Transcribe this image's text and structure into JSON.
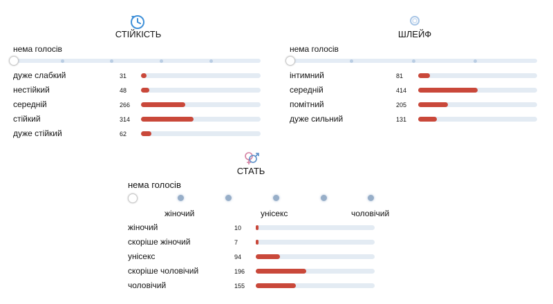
{
  "colors": {
    "bar": "#c9483a",
    "track": "#e3ebf3",
    "tick": "#b9cde3"
  },
  "longevity": {
    "icon": "clock-arrow-icon",
    "title": "СТІЙКІСТЬ",
    "no_votes": "нема голосів",
    "rows": [
      {
        "label": "дуже слабкий",
        "count": "31",
        "value": 31
      },
      {
        "label": "нестійкий",
        "count": "48",
        "value": 48
      },
      {
        "label": "середній",
        "count": "266",
        "value": 266
      },
      {
        "label": "стійкий",
        "count": "314",
        "value": 314
      },
      {
        "label": "дуже стійкий",
        "count": "62",
        "value": 62
      }
    ]
  },
  "sillage": {
    "icon": "sillage-waves-icon",
    "title": "ШЛЕЙФ",
    "no_votes": "нема голосів",
    "rows": [
      {
        "label": "інтимний",
        "count": "81",
        "value": 81
      },
      {
        "label": "середній",
        "count": "414",
        "value": 414
      },
      {
        "label": "помітний",
        "count": "205",
        "value": 205
      },
      {
        "label": "дуже сильний",
        "count": "131",
        "value": 131
      }
    ]
  },
  "gender": {
    "icon": "gender-symbols-icon",
    "title": "СТАТЬ",
    "no_votes": "нема голосів",
    "scale_labels": {
      "left": "жіночий",
      "middle": "унісекс",
      "right": "чоловічий"
    },
    "rows": [
      {
        "label": "жіночий",
        "count": "10",
        "value": 10
      },
      {
        "label": "скоріше жіночий",
        "count": "7",
        "value": 7
      },
      {
        "label": "унісекс",
        "count": "94",
        "value": 94
      },
      {
        "label": "скоріше чоловічий",
        "count": "196",
        "value": 196
      },
      {
        "label": "чоловічий",
        "count": "155",
        "value": 155
      }
    ]
  }
}
